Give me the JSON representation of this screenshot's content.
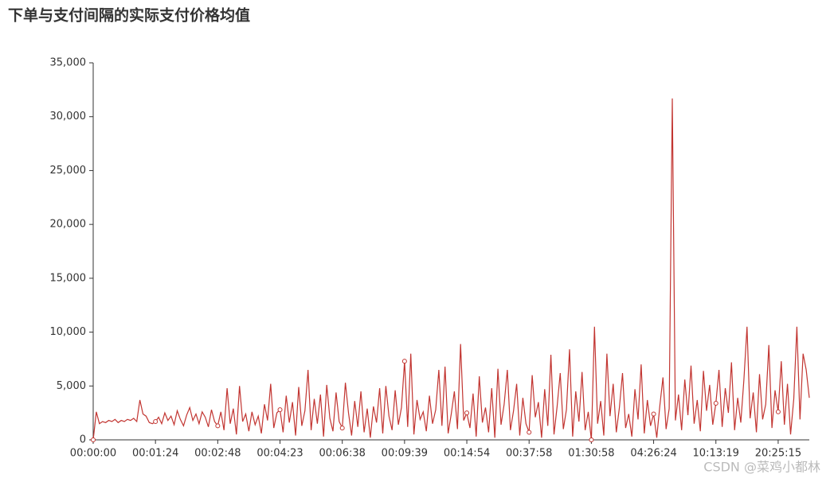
{
  "chart_data": {
    "type": "line",
    "title": "下单与支付间隔的实际支付价格均值",
    "watermark": "CSDN @菜鸡小都林",
    "color": "#c23531",
    "categories": [
      "00:00:00",
      null,
      null,
      null,
      null,
      null,
      null,
      null,
      null,
      null,
      null,
      null,
      null,
      null,
      null,
      null,
      null,
      null,
      null,
      null,
      "00:01:24",
      null,
      null,
      null,
      null,
      null,
      null,
      null,
      null,
      null,
      null,
      null,
      null,
      null,
      null,
      null,
      null,
      null,
      null,
      null,
      "00:02:48",
      null,
      null,
      null,
      null,
      null,
      null,
      null,
      null,
      null,
      null,
      null,
      null,
      null,
      null,
      null,
      null,
      null,
      null,
      null,
      "00:04:23",
      null,
      null,
      null,
      null,
      null,
      null,
      null,
      null,
      null,
      null,
      null,
      null,
      null,
      null,
      null,
      null,
      null,
      null,
      null,
      "00:06:38",
      null,
      null,
      null,
      null,
      null,
      null,
      null,
      null,
      null,
      null,
      null,
      null,
      null,
      null,
      null,
      null,
      null,
      null,
      null,
      "00:09:39",
      null,
      null,
      null,
      null,
      null,
      null,
      null,
      null,
      null,
      null,
      null,
      null,
      null,
      null,
      null,
      null,
      null,
      null,
      null,
      "00:14:54",
      null,
      null,
      null,
      null,
      null,
      null,
      null,
      null,
      null,
      null,
      null,
      null,
      null,
      null,
      null,
      null,
      null,
      null,
      null,
      "00:37:58",
      null,
      null,
      null,
      null,
      null,
      null,
      null,
      null,
      null,
      null,
      null,
      null,
      null,
      null,
      null,
      null,
      null,
      null,
      null,
      "01:30:58",
      null,
      null,
      null,
      null,
      null,
      null,
      null,
      null,
      null,
      null,
      null,
      null,
      null,
      null,
      null,
      null,
      null,
      null,
      null,
      "04:26:24",
      null,
      null,
      null,
      null,
      null,
      null,
      null,
      null,
      null,
      null,
      null,
      null,
      null,
      null,
      null,
      null,
      null,
      null,
      null,
      "10:13:19",
      null,
      null,
      null,
      null,
      null,
      null,
      null,
      null,
      null,
      null,
      null,
      null,
      null,
      null,
      null,
      null,
      null,
      null,
      null,
      "20:25:15",
      null,
      null,
      null,
      null,
      null,
      null,
      null,
      null,
      null,
      null
    ],
    "values": [
      0,
      2600,
      1500,
      1700,
      1600,
      1800,
      1700,
      1900,
      1600,
      1800,
      1700,
      1900,
      1800,
      2000,
      1700,
      3700,
      2400,
      2200,
      1600,
      1500,
      1700,
      2100,
      1500,
      2500,
      1800,
      2200,
      1400,
      2700,
      1900,
      1300,
      2300,
      3000,
      1800,
      2400,
      1500,
      2600,
      2100,
      1200,
      2800,
      1700,
      1300,
      2600,
      900,
      4800,
      1500,
      2900,
      500,
      5000,
      1700,
      2400,
      800,
      2600,
      1400,
      2200,
      600,
      3300,
      1800,
      5200,
      1100,
      2500,
      2800,
      700,
      4100,
      1600,
      3500,
      400,
      4900,
      1300,
      2700,
      6500,
      900,
      3800,
      1500,
      4200,
      300,
      5100,
      2000,
      800,
      4400,
      1700,
      1100,
      5300,
      2500,
      400,
      3600,
      1200,
      4500,
      700,
      2900,
      200,
      3100,
      1600,
      4800,
      600,
      5000,
      2200,
      900,
      4600,
      1400,
      3000,
      7300,
      1200,
      8000,
      500,
      3700,
      1900,
      2600,
      800,
      4100,
      1500,
      2800,
      6500,
      1300,
      6800,
      600,
      2400,
      4500,
      1000,
      8900,
      1800,
      2500,
      1100,
      4300,
      300,
      5900,
      1600,
      3000,
      700,
      4800,
      200,
      6600,
      1400,
      3300,
      6500,
      900,
      2700,
      5200,
      400,
      3900,
      1500,
      700,
      6000,
      2100,
      3500,
      200,
      4700,
      1300,
      7900,
      500,
      3100,
      6200,
      1000,
      2800,
      8400,
      300,
      4500,
      1700,
      6300,
      900,
      2600,
      0,
      10500,
      1500,
      3600,
      400,
      8000,
      2200,
      5200,
      700,
      3000,
      6200,
      1100,
      2400,
      300,
      4700,
      1900,
      7000,
      600,
      3700,
      1300,
      2400,
      200,
      3200,
      5800,
      1000,
      2900,
      31700,
      1800,
      4200,
      900,
      5600,
      2300,
      6900,
      1500,
      3700,
      800,
      6400,
      2700,
      5100,
      1400,
      3400,
      6500,
      1200,
      4800,
      2500,
      7200,
      900,
      3900,
      1600,
      5600,
      10500,
      2000,
      4400,
      700,
      6100,
      1900,
      3300,
      8800,
      1100,
      4600,
      2600,
      7300,
      1400,
      5200,
      500,
      3800,
      10500,
      1900,
      8000,
      6500,
      3900
    ],
    "ylim": [
      0,
      35000
    ],
    "yticks": [
      0,
      {
        "value": 5000,
        "label": "5,000"
      },
      {
        "value": 10000,
        "label": "10,000"
      },
      {
        "value": 15000,
        "label": "15,000"
      },
      {
        "value": 20000,
        "label": "20,000"
      },
      {
        "value": 25000,
        "label": "25,000"
      },
      {
        "value": 30000,
        "label": "30,000"
      },
      {
        "value": 35000,
        "label": "35,000"
      }
    ]
  }
}
